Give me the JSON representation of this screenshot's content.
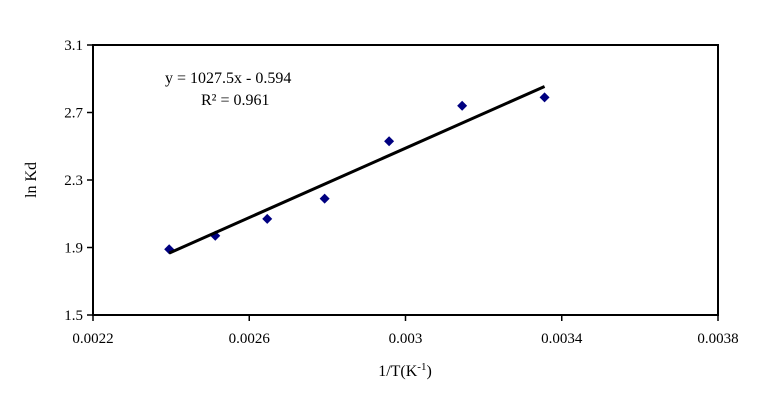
{
  "chart_data": {
    "type": "scatter",
    "xlabel": "1/T(K",
    "xlabel_superscript": "-1",
    "xlabel_close": ")",
    "ylabel": "ln Kd",
    "xlim": [
      0.0022,
      0.0038
    ],
    "ylim": [
      1.5,
      3.1
    ],
    "x_ticks": [
      0.0022,
      0.0026,
      0.003,
      0.0034,
      0.0038
    ],
    "x_tick_labels": [
      "0.0022",
      "0.0026",
      "0.003",
      "0.0034",
      "0.0038"
    ],
    "y_ticks": [
      1.5,
      1.9,
      2.3,
      2.7,
      3.1
    ],
    "y_tick_labels": [
      "1.5",
      "1.9",
      "2.3",
      "2.7",
      "3.1"
    ],
    "grid": false,
    "marker_color": "#000080",
    "line_color": "#000000",
    "series": [
      {
        "points": [
          {
            "x": 0.002395,
            "y": 1.89
          },
          {
            "x": 0.002513,
            "y": 1.97
          },
          {
            "x": 0.002646,
            "y": 2.07
          },
          {
            "x": 0.002793,
            "y": 2.19
          },
          {
            "x": 0.002958,
            "y": 2.53
          },
          {
            "x": 0.003145,
            "y": 2.74
          },
          {
            "x": 0.003356,
            "y": 2.79
          }
        ]
      }
    ],
    "trendline": {
      "slope": 1027.5,
      "intercept": -0.594,
      "x_start": 0.002395,
      "x_end": 0.003356,
      "equation_label": "y = 1027.5x - 0.594",
      "r2_label": "R² = 0.961"
    }
  }
}
